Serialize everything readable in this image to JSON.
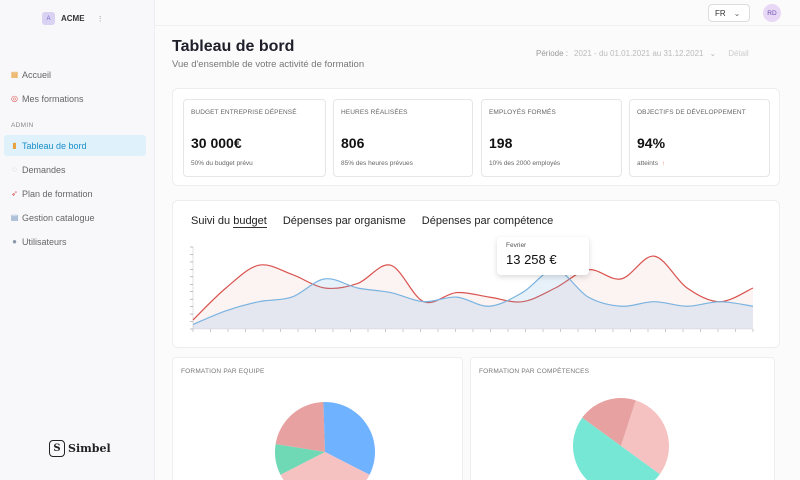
{
  "org": {
    "logo_letter": "A",
    "name": "ACME",
    "chevron": "⌄"
  },
  "nav": {
    "items_top": [
      {
        "icon": "home-icon",
        "glyph": "🏠",
        "label": "Accueil"
      },
      {
        "icon": "target-icon",
        "glyph": "🎯",
        "label": "Mes formations"
      }
    ],
    "section": "ADMIN",
    "items_admin": [
      {
        "icon": "chart-icon",
        "glyph": "📊",
        "label": "Tableau de bord",
        "active": true
      },
      {
        "icon": "speech-icon",
        "glyph": "💬",
        "label": "Demandes"
      },
      {
        "icon": "rocket-icon",
        "glyph": "🚀",
        "label": "Plan de formation"
      },
      {
        "icon": "catalog-icon",
        "glyph": "📚",
        "label": "Gestion catalogue"
      },
      {
        "icon": "user-icon",
        "glyph": "👤",
        "label": "Utilisateurs"
      }
    ]
  },
  "brand": {
    "letter": "S",
    "name": "Simbel"
  },
  "topbar": {
    "lang": "FR",
    "avatar": "RD"
  },
  "header": {
    "title": "Tableau de bord",
    "subtitle": "Vue d'ensemble de votre activité de formation",
    "period_label": "Période :",
    "period_value": "2021 - du 01.01.2021 au 31.12.2021",
    "detail": "Détail"
  },
  "kpis": [
    {
      "label": "BUDGET ENTREPRISE DÉPENSÉ",
      "value": "30 000€",
      "note": "50% du budget prévu"
    },
    {
      "label": "HEURES RÉALISÉES",
      "value": "806",
      "note": "85% des heures prévues"
    },
    {
      "label": "EMPLOYÉS FORMÉS",
      "value": "198",
      "note": "10% des 2000 employés"
    },
    {
      "label": "OBJECTIFS DE DÉVELOPPEMENT",
      "value": "94%",
      "note": "atteints",
      "note_arrow": "↑"
    }
  ],
  "chart_tabs": {
    "budget_prefix": "Suivi du ",
    "budget_underlined": "budget",
    "organisme": "Dépenses par organisme",
    "competence": "Dépenses par compétence"
  },
  "tooltip": {
    "label": "Fevrier",
    "value": "13 258 €"
  },
  "chart_data": {
    "type": "line",
    "series": [
      {
        "color": "#d9534f",
        "values": [
          2,
          9,
          14,
          12,
          9,
          10,
          14,
          6,
          8,
          7,
          6,
          9,
          13,
          11,
          16,
          9,
          6,
          9
        ]
      },
      {
        "color": "#7ab3e0",
        "values": [
          1,
          4,
          6,
          7,
          11,
          9,
          8,
          6,
          7,
          5,
          8,
          13,
          7,
          5,
          6,
          5,
          6,
          5
        ]
      }
    ]
  },
  "pies": {
    "team": {
      "title": "FORMATION PAR EQUIPE",
      "slices": [
        {
          "color": "#e6a1a0",
          "value": 22
        },
        {
          "color": "#6fb2ff",
          "value": 33
        },
        {
          "color": "#f6c1c1",
          "value": 35
        },
        {
          "color": "#6fd8b5",
          "value": 10
        }
      ]
    },
    "skills": {
      "title": "FORMATION PAR COMPÉTENCES",
      "slices": [
        {
          "color": "#e6a1a0",
          "value": 20
        },
        {
          "color": "#f6c1c1",
          "value": 30
        },
        {
          "color": "#77e7d5",
          "value": 50
        }
      ]
    }
  }
}
